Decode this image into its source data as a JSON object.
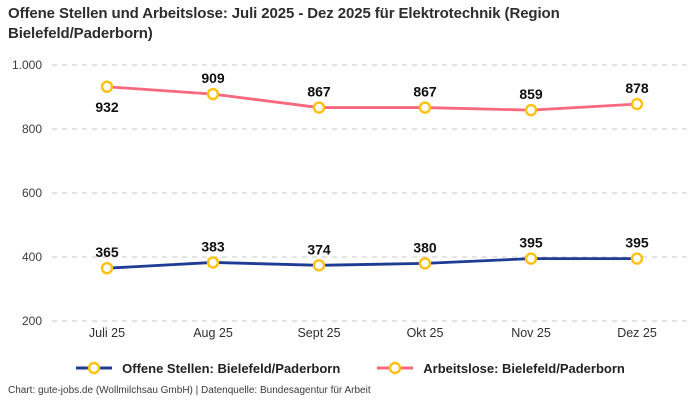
{
  "chart_data": {
    "type": "line",
    "title": "Offene Stellen und Arbeitslose: Juli 2025 - Dez 2025 für Elektrotechnik (Region Bielefeld/Paderborn)",
    "xlabel": "",
    "ylabel": "",
    "categories": [
      "Juli 25",
      "Aug 25",
      "Sept 25",
      "Okt 25",
      "Nov 25",
      "Dez 25"
    ],
    "series": [
      {
        "name": "Offene Stellen: Bielefeld/Paderborn",
        "color": "#1e3c96",
        "values": [
          365,
          383,
          374,
          380,
          395,
          395
        ],
        "label_positions": [
          "above",
          "above",
          "above",
          "above",
          "above",
          "above"
        ]
      },
      {
        "name": "Arbeitslose: Bielefeld/Paderborn",
        "color": "#f8687f",
        "values": [
          932,
          909,
          867,
          867,
          859,
          878
        ],
        "label_positions": [
          "below",
          "above",
          "above",
          "above",
          "above",
          "above"
        ]
      }
    ],
    "y_ticks": [
      {
        "value": 200,
        "label": "200"
      },
      {
        "value": 400,
        "label": "400"
      },
      {
        "value": 600,
        "label": "600"
      },
      {
        "value": 800,
        "label": "800"
      },
      {
        "value": 1000,
        "label": "1.000"
      }
    ],
    "ylim": [
      200,
      1000
    ],
    "grid": "horizontal-dashed",
    "gridline_color": "#c9c9c9",
    "legend_position": "bottom",
    "marker": {
      "fill": "#ffffff",
      "stroke": "#ffc10e"
    }
  },
  "footer": "Chart: gute-jobs.de (Wollmilchsau GmbH) | Datenquelle: Bundesagentur für Arbeit"
}
